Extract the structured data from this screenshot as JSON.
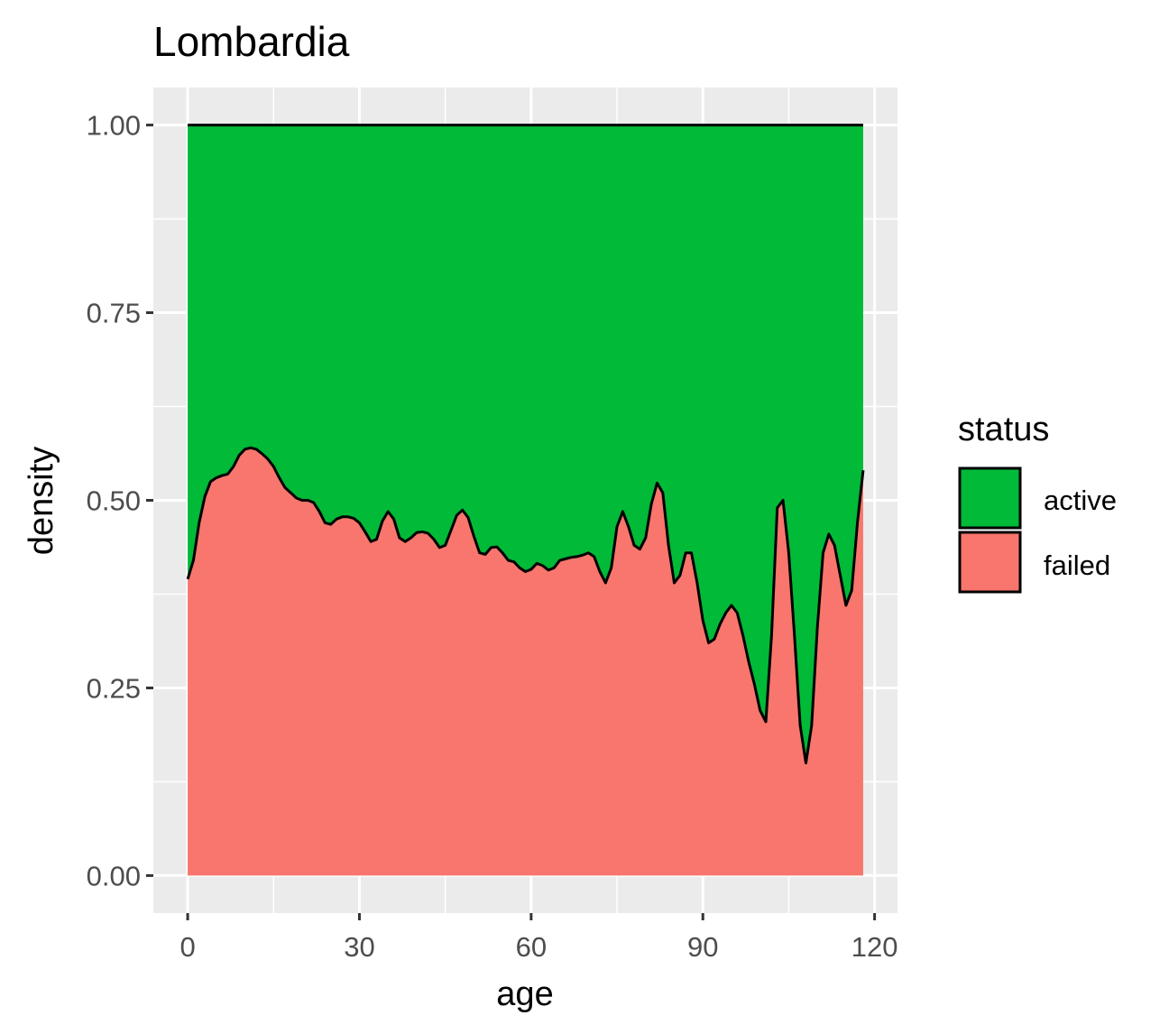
{
  "chart_data": {
    "type": "area",
    "title": "Lombardia",
    "xlabel": "age",
    "ylabel": "density",
    "xlim": [
      -6,
      124
    ],
    "ylim": [
      -0.05,
      1.05
    ],
    "x_ticks": [
      0,
      30,
      60,
      90,
      120
    ],
    "x_tick_labels": [
      "0",
      "30",
      "60",
      "90",
      "120"
    ],
    "y_ticks": [
      0,
      0.25,
      0.5,
      0.75,
      1
    ],
    "y_tick_labels": [
      "0.00",
      "0.25",
      "0.50",
      "0.75",
      "1.00"
    ],
    "grid": true,
    "legend": {
      "title": "status",
      "position": "right",
      "entries": [
        {
          "label": "active",
          "color": "#00BA38"
        },
        {
          "label": "failed",
          "color": "#F8766D"
        }
      ]
    },
    "series": [
      {
        "name": "failed",
        "color": "#F8766D"
      },
      {
        "name": "active",
        "color": "#00BA38"
      }
    ],
    "x": [
      0,
      1,
      2,
      3,
      4,
      5,
      6,
      7,
      8,
      9,
      10,
      11,
      12,
      13,
      14,
      15,
      16,
      17,
      18,
      19,
      20,
      21,
      22,
      23,
      24,
      25,
      26,
      27,
      28,
      29,
      30,
      31,
      32,
      33,
      34,
      35,
      36,
      37,
      38,
      39,
      40,
      41,
      42,
      43,
      44,
      45,
      46,
      47,
      48,
      49,
      50,
      51,
      52,
      53,
      54,
      55,
      56,
      57,
      58,
      59,
      60,
      61,
      62,
      63,
      64,
      65,
      66,
      67,
      68,
      69,
      70,
      71,
      72,
      73,
      74,
      75,
      76,
      77,
      78,
      79,
      80,
      81,
      82,
      83,
      84,
      85,
      86,
      87,
      88,
      89,
      90,
      91,
      92,
      93,
      94,
      95,
      96,
      97,
      98,
      99,
      100,
      101,
      102,
      103,
      104,
      105,
      106,
      107,
      108,
      109,
      110,
      111,
      112,
      113,
      114,
      115,
      116,
      117,
      118
    ],
    "failed_share": [
      0.395,
      0.42,
      0.47,
      0.505,
      0.525,
      0.53,
      0.533,
      0.535,
      0.545,
      0.56,
      0.568,
      0.57,
      0.568,
      0.562,
      0.555,
      0.545,
      0.53,
      0.517,
      0.51,
      0.503,
      0.5,
      0.5,
      0.497,
      0.485,
      0.47,
      0.468,
      0.475,
      0.478,
      0.478,
      0.476,
      0.47,
      0.458,
      0.445,
      0.448,
      0.472,
      0.485,
      0.475,
      0.45,
      0.445,
      0.45,
      0.457,
      0.458,
      0.456,
      0.448,
      0.437,
      0.44,
      0.46,
      0.48,
      0.487,
      0.477,
      0.452,
      0.43,
      0.428,
      0.437,
      0.438,
      0.43,
      0.42,
      0.418,
      0.41,
      0.405,
      0.408,
      0.416,
      0.413,
      0.407,
      0.41,
      0.42,
      0.422,
      0.424,
      0.425,
      0.427,
      0.43,
      0.425,
      0.405,
      0.39,
      0.41,
      0.465,
      0.485,
      0.465,
      0.44,
      0.435,
      0.45,
      0.495,
      0.523,
      0.51,
      0.44,
      0.39,
      0.4,
      0.43,
      0.43,
      0.39,
      0.34,
      0.31,
      0.315,
      0.335,
      0.35,
      0.36,
      0.35,
      0.32,
      0.285,
      0.255,
      0.22,
      0.205,
      0.32,
      0.49,
      0.5,
      0.43,
      0.32,
      0.2,
      0.15,
      0.2,
      0.33,
      0.43,
      0.455,
      0.44,
      0.4,
      0.36,
      0.38,
      0.47,
      0.54
    ]
  }
}
